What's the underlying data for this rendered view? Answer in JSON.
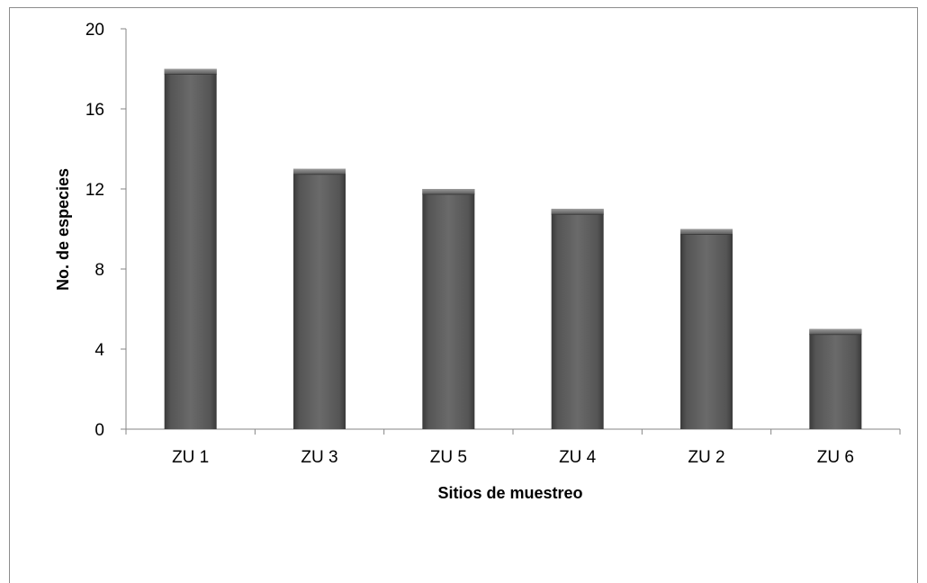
{
  "chart_data": {
    "type": "bar",
    "title": "",
    "xlabel": "Sitios de muestreo",
    "ylabel": "No. de especies",
    "categories": [
      "ZU 1",
      "ZU 3",
      "ZU 5",
      "ZU 4",
      "ZU 2",
      "ZU 6"
    ],
    "values": [
      18,
      13,
      12,
      11,
      10,
      5
    ],
    "ylim": [
      0,
      20
    ],
    "yticks": [
      0,
      4,
      8,
      12,
      16,
      20
    ],
    "grid": false,
    "legend": "none",
    "bar_color": "#595959"
  }
}
